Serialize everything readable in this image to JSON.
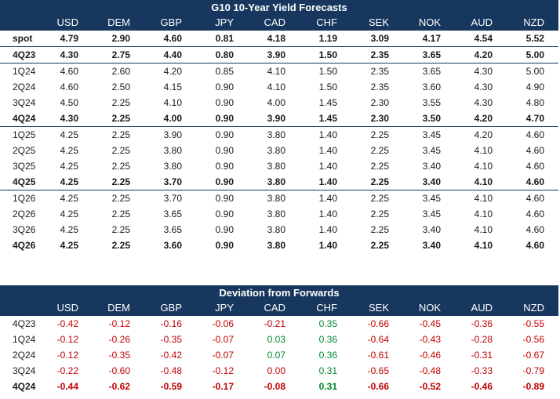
{
  "forecasts": {
    "title": "G10 10-Year Yield Forecasts",
    "columns": [
      "USD",
      "DEM",
      "GBP",
      "JPY",
      "CAD",
      "CHF",
      "SEK",
      "NOK",
      "AUD",
      "NZD"
    ],
    "rows": [
      {
        "label": "spot",
        "bold": true,
        "values": [
          "4.79",
          "2.90",
          "4.60",
          "0.81",
          "4.18",
          "1.19",
          "3.09",
          "4.17",
          "4.54",
          "5.52"
        ]
      },
      {
        "label": "4Q23",
        "bold": true,
        "values": [
          "4.30",
          "2.75",
          "4.40",
          "0.80",
          "3.90",
          "1.50",
          "2.35",
          "3.65",
          "4.20",
          "5.00"
        ]
      },
      {
        "label": "1Q24",
        "bold": false,
        "values": [
          "4.60",
          "2.60",
          "4.20",
          "0.85",
          "4.10",
          "1.50",
          "2.35",
          "3.65",
          "4.30",
          "5.00"
        ]
      },
      {
        "label": "2Q24",
        "bold": false,
        "values": [
          "4.60",
          "2.50",
          "4.15",
          "0.90",
          "4.10",
          "1.50",
          "2.35",
          "3.60",
          "4.30",
          "4.90"
        ]
      },
      {
        "label": "3Q24",
        "bold": false,
        "values": [
          "4.50",
          "2.25",
          "4.10",
          "0.90",
          "4.00",
          "1.45",
          "2.30",
          "3.55",
          "4.30",
          "4.80"
        ]
      },
      {
        "label": "4Q24",
        "bold": true,
        "values": [
          "4.30",
          "2.25",
          "4.00",
          "0.90",
          "3.90",
          "1.45",
          "2.30",
          "3.50",
          "4.20",
          "4.70"
        ]
      },
      {
        "label": "1Q25",
        "bold": false,
        "values": [
          "4.25",
          "2.25",
          "3.90",
          "0.90",
          "3.80",
          "1.40",
          "2.25",
          "3.45",
          "4.20",
          "4.60"
        ]
      },
      {
        "label": "2Q25",
        "bold": false,
        "values": [
          "4.25",
          "2.25",
          "3.80",
          "0.90",
          "3.80",
          "1.40",
          "2.25",
          "3.45",
          "4.10",
          "4.60"
        ]
      },
      {
        "label": "3Q25",
        "bold": false,
        "values": [
          "4.25",
          "2.25",
          "3.80",
          "0.90",
          "3.80",
          "1.40",
          "2.25",
          "3.40",
          "4.10",
          "4.60"
        ]
      },
      {
        "label": "4Q25",
        "bold": true,
        "values": [
          "4.25",
          "2.25",
          "3.70",
          "0.90",
          "3.80",
          "1.40",
          "2.25",
          "3.40",
          "4.10",
          "4.60"
        ]
      },
      {
        "label": "1Q26",
        "bold": false,
        "values": [
          "4.25",
          "2.25",
          "3.70",
          "0.90",
          "3.80",
          "1.40",
          "2.25",
          "3.45",
          "4.10",
          "4.60"
        ]
      },
      {
        "label": "2Q26",
        "bold": false,
        "values": [
          "4.25",
          "2.25",
          "3.65",
          "0.90",
          "3.80",
          "1.40",
          "2.25",
          "3.45",
          "4.10",
          "4.60"
        ]
      },
      {
        "label": "3Q26",
        "bold": false,
        "values": [
          "4.25",
          "2.25",
          "3.65",
          "0.90",
          "3.80",
          "1.40",
          "2.25",
          "3.40",
          "4.10",
          "4.60"
        ]
      },
      {
        "label": "4Q26",
        "bold": true,
        "values": [
          "4.25",
          "2.25",
          "3.60",
          "0.90",
          "3.80",
          "1.40",
          "2.25",
          "3.40",
          "4.10",
          "4.60"
        ]
      }
    ]
  },
  "deviation": {
    "title": "Deviation from Forwards",
    "columns": [
      "USD",
      "DEM",
      "GBP",
      "JPY",
      "CAD",
      "CHF",
      "SEK",
      "NOK",
      "AUD",
      "NZD"
    ],
    "rows": [
      {
        "label": "4Q23",
        "bold": false,
        "values": [
          "-0.42",
          "-0.12",
          "-0.16",
          "-0.06",
          "-0.21",
          "0.35",
          "-0.66",
          "-0.45",
          "-0.36",
          "-0.55"
        ]
      },
      {
        "label": "1Q24",
        "bold": false,
        "values": [
          "-0.12",
          "-0.26",
          "-0.35",
          "-0.07",
          "0.03",
          "0.36",
          "-0.64",
          "-0.43",
          "-0.28",
          "-0.56"
        ]
      },
      {
        "label": "2Q24",
        "bold": false,
        "values": [
          "-0.12",
          "-0.35",
          "-0.42",
          "-0.07",
          "0.07",
          "0.36",
          "-0.61",
          "-0.46",
          "-0.31",
          "-0.67"
        ]
      },
      {
        "label": "3Q24",
        "bold": false,
        "values": [
          "-0.22",
          "-0.60",
          "-0.48",
          "-0.12",
          "0.00",
          "0.31",
          "-0.65",
          "-0.48",
          "-0.33",
          "-0.79"
        ]
      },
      {
        "label": "4Q24",
        "bold": true,
        "values": [
          "-0.44",
          "-0.62",
          "-0.59",
          "-0.17",
          "-0.08",
          "0.31",
          "-0.66",
          "-0.52",
          "-0.46",
          "-0.89"
        ]
      }
    ]
  },
  "colors": {
    "header_bg": "#17375e",
    "negative": "#c00000",
    "positive": "#00872d"
  }
}
